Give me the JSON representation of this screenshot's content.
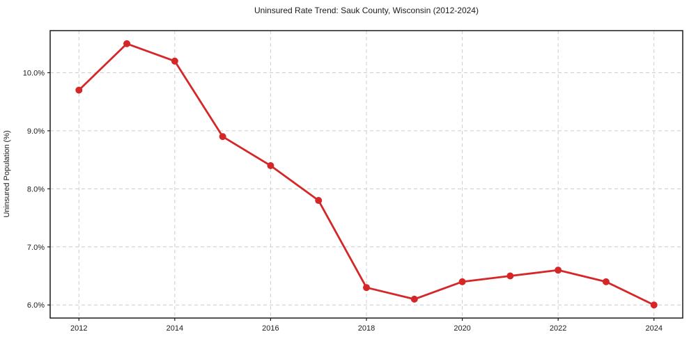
{
  "chart_data": {
    "type": "line",
    "title": "Uninsured Rate Trend: Sauk County, Wisconsin (2012-2024)",
    "xlabel": "",
    "ylabel": "Uninsured Population (%)",
    "x": [
      2012,
      2013,
      2014,
      2015,
      2016,
      2017,
      2018,
      2019,
      2020,
      2021,
      2022,
      2023,
      2024
    ],
    "values": [
      9.7,
      10.5,
      10.2,
      8.9,
      8.4,
      7.8,
      6.3,
      6.1,
      6.4,
      6.5,
      6.6,
      6.4,
      6.0
    ],
    "x_tick_labels": [
      "2012",
      "2014",
      "2016",
      "2018",
      "2020",
      "2022",
      "2024"
    ],
    "x_tick_values": [
      2012,
      2014,
      2016,
      2018,
      2020,
      2022,
      2024
    ],
    "y_tick_labels": [
      "6.0%",
      "7.0%",
      "8.0%",
      "9.0%",
      "10.0%"
    ],
    "y_tick_values": [
      6,
      7,
      8,
      9,
      10
    ],
    "xlim": [
      2011.4,
      2024.6
    ],
    "ylim": [
      5.775,
      10.725
    ],
    "grid": "dashed",
    "legend_position": "none",
    "line_color": "#d62728",
    "grid_color": "#cccccc",
    "frame_color": "#1a1a1a",
    "text_color": "#1a1a1a",
    "background_color": "#ffffff"
  }
}
